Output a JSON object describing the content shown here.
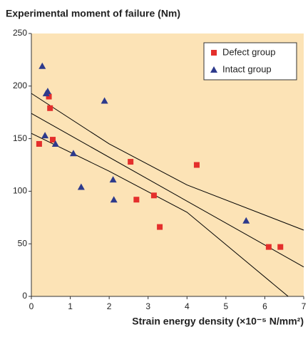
{
  "chart_data": {
    "type": "scatter",
    "title": "Experimental moment of failure (Nm)",
    "x_label": "Strain energy density (×10⁻⁵ N/mm²)",
    "xlim": [
      0,
      7
    ],
    "xticks": [
      0,
      1,
      2,
      3,
      4,
      5,
      6,
      7
    ],
    "ylim": [
      0,
      250
    ],
    "yticks": [
      0,
      50,
      100,
      150,
      200,
      250
    ],
    "background": "#fce3b6",
    "legend": "top-right",
    "series": [
      {
        "name": "Defect group",
        "color": "#e42f2c",
        "marker": "square",
        "x": [
          0.2,
          0.45,
          0.48,
          0.55,
          2.55,
          2.7,
          3.15,
          3.3,
          4.25,
          6.1,
          6.4
        ],
        "values": [
          145,
          190,
          179,
          149,
          128,
          92,
          96,
          66,
          125,
          47,
          47
        ]
      },
      {
        "name": "Intact group",
        "color": "#2d3a8c",
        "marker": "triangle",
        "x": [
          0.28,
          0.35,
          0.38,
          0.42,
          0.62,
          1.08,
          1.28,
          1.88,
          2.1,
          2.12,
          5.52
        ],
        "values": [
          219,
          153,
          193,
          195,
          145,
          136,
          104,
          186,
          111,
          92,
          72
        ]
      }
    ],
    "fit_lines": [
      {
        "color": "#000000",
        "x": [
          0,
          7
        ],
        "values": [
          174,
          28
        ]
      },
      {
        "color": "#000000",
        "x": [
          0,
          2,
          4,
          7
        ],
        "values": [
          193,
          145,
          106,
          63
        ]
      },
      {
        "color": "#000000",
        "x": [
          0,
          2,
          4,
          6.6
        ],
        "values": [
          155,
          119,
          80,
          0
        ]
      }
    ]
  }
}
